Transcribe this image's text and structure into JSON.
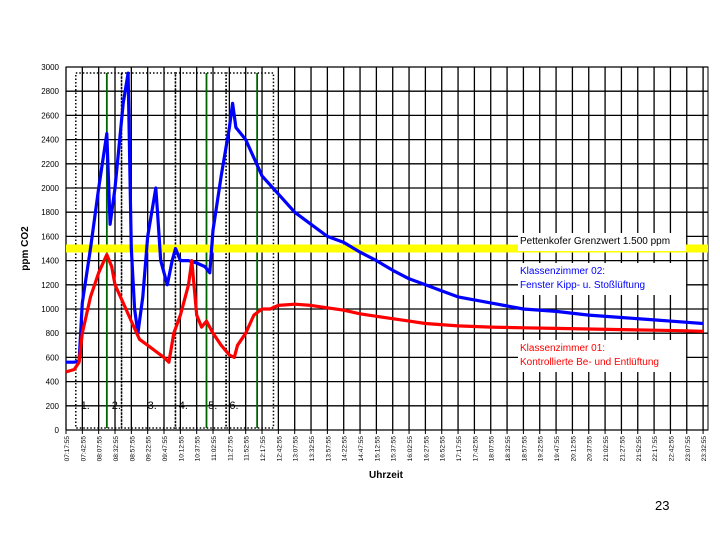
{
  "page_number": "23",
  "chart_data": {
    "type": "line",
    "title": "",
    "ylabel": "ppm CO2",
    "xlabel": "Uhrzeit",
    "ylim": [
      0,
      3000
    ],
    "yticks": [
      0,
      200,
      400,
      600,
      800,
      1000,
      1200,
      1400,
      1600,
      1800,
      2000,
      2200,
      2400,
      2600,
      2800,
      3000
    ],
    "grid": true,
    "x_tick_labels": [
      "07:17:55",
      "07:42:55",
      "08:07:55",
      "08:32:55",
      "08:57:55",
      "09:22:55",
      "09:47:55",
      "10:12:55",
      "10:37:55",
      "11:02:55",
      "11:27:55",
      "11:52:55",
      "12:17:55",
      "12:42:55",
      "13:07:55",
      "13:32:55",
      "13:57:55",
      "14:22:55",
      "14:47:55",
      "15:12:55",
      "15:37:55",
      "16:02:55",
      "16:27:55",
      "16:52:55",
      "17:17:55",
      "17:42:55",
      "18:07:55",
      "18:32:55",
      "18:57:55",
      "19:22:55",
      "19:47:55",
      "20:12:55",
      "20:37:55",
      "21:02:55",
      "21:27:55",
      "21:52:55",
      "22:17:55",
      "22:42:55",
      "23:07:55",
      "23:32:55"
    ],
    "x_range_ticks": [
      0,
      39
    ],
    "threshold": {
      "value": 1500,
      "label": "Pettenkofer Grenzwert 1.500 ppm",
      "color": "#ffff00"
    },
    "phase_labels": [
      "1.",
      "2.",
      "3.",
      "4.",
      "5.",
      "6."
    ],
    "phase_boxes_tick_range": [
      [
        0.6,
        3.4
      ],
      [
        3.4,
        6.7
      ],
      [
        6.7,
        9.8
      ],
      [
        9.8,
        12.7
      ]
    ],
    "phase_dividers_tick": [
      2.5,
      8.6,
      11.7
    ],
    "series": [
      {
        "name": "Klassenzimmer 02: Fenster Kipp- u. Stoßlüftung",
        "color": "#0000ff",
        "points": [
          [
            0.0,
            560
          ],
          [
            0.5,
            560
          ],
          [
            0.8,
            570
          ],
          [
            1.0,
            1050
          ],
          [
            1.5,
            1500
          ],
          [
            2.0,
            2000
          ],
          [
            2.5,
            2450
          ],
          [
            2.7,
            1700
          ],
          [
            3.0,
            2000
          ],
          [
            3.5,
            2700
          ],
          [
            3.8,
            2950
          ],
          [
            4.0,
            1500
          ],
          [
            4.2,
            1000
          ],
          [
            4.4,
            800
          ],
          [
            4.7,
            1100
          ],
          [
            5.0,
            1600
          ],
          [
            5.5,
            2000
          ],
          [
            5.6,
            1800
          ],
          [
            5.8,
            1400
          ],
          [
            6.0,
            1300
          ],
          [
            6.2,
            1200
          ],
          [
            6.5,
            1400
          ],
          [
            6.7,
            1500
          ],
          [
            7.0,
            1400
          ],
          [
            7.5,
            1400
          ],
          [
            8.0,
            1380
          ],
          [
            8.5,
            1350
          ],
          [
            8.8,
            1300
          ],
          [
            9.0,
            1650
          ],
          [
            9.5,
            2100
          ],
          [
            10.0,
            2500
          ],
          [
            10.2,
            2700
          ],
          [
            10.4,
            2500
          ],
          [
            11.0,
            2400
          ],
          [
            11.5,
            2250
          ],
          [
            12.0,
            2100
          ],
          [
            13.0,
            1950
          ],
          [
            14.0,
            1800
          ],
          [
            15.0,
            1700
          ],
          [
            16.0,
            1600
          ],
          [
            17.0,
            1550
          ],
          [
            18.0,
            1470
          ],
          [
            19.0,
            1400
          ],
          [
            20.0,
            1320
          ],
          [
            21.0,
            1250
          ],
          [
            22.0,
            1200
          ],
          [
            23.0,
            1150
          ],
          [
            24.0,
            1100
          ],
          [
            26.0,
            1050
          ],
          [
            28.0,
            1000
          ],
          [
            30.0,
            980
          ],
          [
            32.0,
            950
          ],
          [
            34.0,
            930
          ],
          [
            36.0,
            910
          ],
          [
            38.0,
            890
          ],
          [
            39.0,
            880
          ]
        ]
      },
      {
        "name": "Klassenzimmer 01: Kontrollierte Be- und Entlüftung",
        "color": "#ff0000",
        "points": [
          [
            0.0,
            480
          ],
          [
            0.5,
            500
          ],
          [
            0.8,
            560
          ],
          [
            1.0,
            800
          ],
          [
            1.5,
            1100
          ],
          [
            2.0,
            1300
          ],
          [
            2.5,
            1450
          ],
          [
            2.8,
            1350
          ],
          [
            3.0,
            1200
          ],
          [
            3.5,
            1050
          ],
          [
            4.0,
            900
          ],
          [
            4.5,
            750
          ],
          [
            5.0,
            700
          ],
          [
            5.5,
            650
          ],
          [
            6.0,
            600
          ],
          [
            6.3,
            560
          ],
          [
            6.6,
            800
          ],
          [
            7.0,
            950
          ],
          [
            7.5,
            1200
          ],
          [
            7.7,
            1400
          ],
          [
            8.0,
            950
          ],
          [
            8.3,
            850
          ],
          [
            8.6,
            900
          ],
          [
            9.0,
            800
          ],
          [
            9.5,
            700
          ],
          [
            10.0,
            620
          ],
          [
            10.3,
            600
          ],
          [
            10.5,
            700
          ],
          [
            11.0,
            800
          ],
          [
            11.5,
            950
          ],
          [
            12.0,
            1000
          ],
          [
            12.5,
            1000
          ],
          [
            13.0,
            1030
          ],
          [
            14.0,
            1040
          ],
          [
            15.0,
            1030
          ],
          [
            16.0,
            1010
          ],
          [
            17.0,
            990
          ],
          [
            18.0,
            960
          ],
          [
            19.0,
            940
          ],
          [
            20.0,
            920
          ],
          [
            21.0,
            900
          ],
          [
            22.0,
            880
          ],
          [
            24.0,
            860
          ],
          [
            26.0,
            850
          ],
          [
            28.0,
            845
          ],
          [
            30.0,
            840
          ],
          [
            32.0,
            835
          ],
          [
            34.0,
            830
          ],
          [
            36.0,
            825
          ],
          [
            38.0,
            820
          ],
          [
            39.0,
            815
          ]
        ]
      }
    ]
  }
}
